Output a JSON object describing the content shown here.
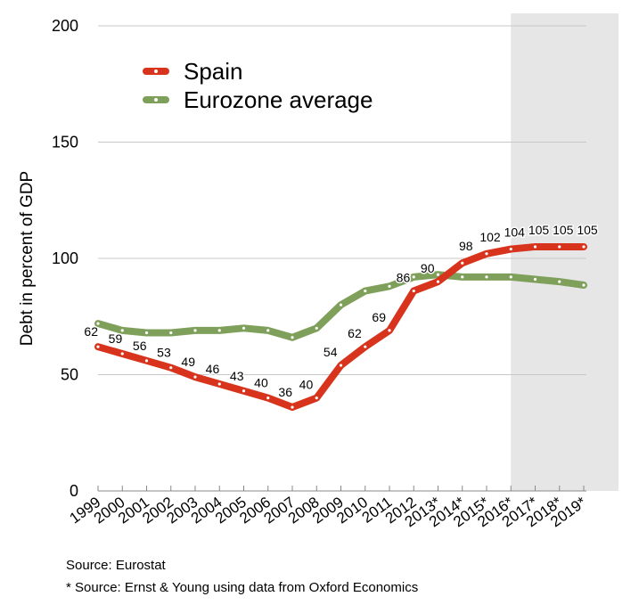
{
  "chart_data": {
    "type": "line",
    "title": "",
    "xlabel": "",
    "ylabel": "Debt in percent of GDP",
    "ylim": [
      0,
      200
    ],
    "yticks": [
      0,
      50,
      100,
      150,
      200
    ],
    "grid": true,
    "legend_position": "top-left",
    "shaded_region": {
      "from": "2016*",
      "to": "2019*"
    },
    "categories": [
      "1999",
      "2000",
      "2001",
      "2002",
      "2003",
      "2004",
      "2005",
      "2006",
      "2007",
      "2008",
      "2009",
      "2010",
      "2011",
      "2012",
      "2013*",
      "2014*",
      "2015*",
      "2016*",
      "2017*",
      "2018*",
      "2019*"
    ],
    "series": [
      {
        "name": "Spain",
        "color": "#d8341d",
        "values": [
          62,
          59,
          56,
          53,
          49,
          46,
          43,
          40,
          36,
          40,
          54,
          62,
          69,
          86,
          90,
          98,
          102,
          104,
          105,
          105,
          105
        ],
        "labels": [
          "62",
          "59",
          "56",
          "53",
          "49",
          "46",
          "43",
          "40",
          "36",
          "40",
          "54",
          "62",
          "69",
          "86",
          "90",
          "98",
          "102",
          "104",
          "105",
          "105",
          "105"
        ]
      },
      {
        "name": "Eurozone average",
        "color": "#7fa05a",
        "values": [
          72,
          69,
          68,
          68,
          69,
          69,
          70,
          69,
          66,
          70,
          80,
          86,
          88,
          92,
          93,
          92,
          92,
          92,
          91,
          90,
          88.5
        ]
      }
    ]
  },
  "sources": {
    "line1": "Source: Eurostat",
    "line2": "* Source: Ernst & Young using data from Oxford Economics"
  }
}
